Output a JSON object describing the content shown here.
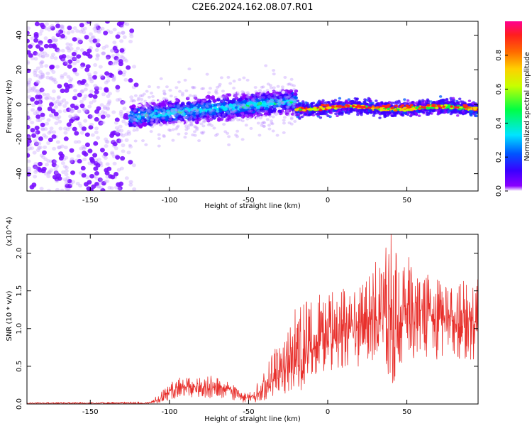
{
  "title": "C2E6.2024.162.08.07.R01",
  "colors": {
    "snr_line": "#e8302c",
    "frame": "#000000",
    "colormap": [
      "#ffffff",
      "#8a00ff",
      "#3a00ff",
      "#0055ff",
      "#00e5ff",
      "#00ff44",
      "#c8ff00",
      "#ffd000",
      "#ff6a00",
      "#ff1e1e",
      "#ff0090"
    ]
  },
  "chart_data": [
    {
      "type": "heatmap",
      "name": "spectrogram",
      "title": "C2E6.2024.162.08.07.R01",
      "xlabel": "Height of straight line (km)",
      "ylabel": "Frequency (Hz)",
      "xlim": [
        -190,
        95
      ],
      "ylim": [
        -50,
        48
      ],
      "xticks": [
        -150,
        -100,
        -50,
        0,
        50
      ],
      "xtick_labels": [
        "-150",
        "-100",
        "-50",
        "0",
        "50"
      ],
      "yticks": [
        -40,
        -20,
        0,
        20,
        40
      ],
      "ytick_labels": [
        "-40",
        "-20",
        "0",
        "20",
        "40"
      ],
      "colorbar": {
        "label": "Normalized spectral amplitude",
        "range": [
          0,
          1
        ],
        "ticks": [
          0.0,
          0.2,
          0.4,
          0.6,
          0.8
        ],
        "tick_labels": [
          "0.0",
          "0.2",
          "0.4",
          "0.6",
          "0.8"
        ]
      },
      "regions": [
        {
          "x_range": [
            -190,
            -122
          ],
          "freq_range": [
            -50,
            48
          ],
          "amplitude_range": [
            0.02,
            0.15
          ],
          "description": "diffuse noise"
        },
        {
          "x_range": [
            -125,
            -20
          ],
          "freq_center": [
            -7,
            2
          ],
          "freq_spread": 9,
          "amplitude_range": [
            0.1,
            0.45
          ]
        },
        {
          "x_range": [
            -20,
            95
          ],
          "freq_center": [
            -2,
            0
          ],
          "freq_spread": 2,
          "amplitude_range": [
            0.3,
            1.0
          ]
        }
      ]
    },
    {
      "type": "line",
      "name": "snr",
      "xlabel": "Height of straight line (km)",
      "ylabel": "SNR (10 * v/v)",
      "y_multiplier": "(x10^4)",
      "xlim": [
        -190,
        95
      ],
      "ylim": [
        0,
        2.25
      ],
      "xticks": [
        -150,
        -100,
        -50,
        0,
        50
      ],
      "xtick_labels": [
        "-150",
        "-100",
        "-50",
        "0",
        "50"
      ],
      "yticks": [
        0.0,
        0.5,
        1.0,
        1.5,
        2.0
      ],
      "ytick_labels": [
        "0.0",
        "0.5",
        "1.0",
        "1.5",
        "2.0"
      ],
      "envelope": {
        "x": [
          -190,
          -115,
          -110,
          -105,
          -100,
          -95,
          -90,
          -85,
          -80,
          -75,
          -70,
          -65,
          -60,
          -55,
          -50,
          -45,
          -40,
          -35,
          -30,
          -25,
          -20,
          -15,
          -10,
          -5,
          0,
          5,
          10,
          15,
          20,
          25,
          30,
          35,
          40,
          45,
          50,
          55,
          60,
          65,
          70,
          75,
          80,
          85,
          90,
          95
        ],
        "mean": [
          0.01,
          0.01,
          0.03,
          0.08,
          0.16,
          0.22,
          0.23,
          0.22,
          0.21,
          0.22,
          0.21,
          0.22,
          0.18,
          0.1,
          0.08,
          0.12,
          0.2,
          0.3,
          0.38,
          0.42,
          0.5,
          0.62,
          0.72,
          0.8,
          0.82,
          0.9,
          0.92,
          0.98,
          1.05,
          1.12,
          1.18,
          1.2,
          1.25,
          1.28,
          1.3,
          1.25,
          1.22,
          1.2,
          1.18,
          1.15,
          1.15,
          1.12,
          1.1,
          1.1
        ],
        "peak": [
          0.02,
          0.03,
          0.07,
          0.18,
          0.28,
          0.35,
          0.38,
          0.38,
          0.35,
          0.38,
          0.34,
          0.36,
          0.3,
          0.2,
          0.15,
          0.28,
          0.45,
          0.68,
          0.85,
          1.05,
          1.35,
          1.5,
          1.45,
          1.5,
          1.5,
          1.48,
          1.55,
          1.7,
          1.6,
          1.75,
          1.9,
          2.0,
          2.3,
          1.95,
          2.0,
          1.85,
          1.6,
          1.8,
          1.7,
          1.55,
          1.65,
          1.7,
          1.6,
          1.7
        ],
        "trough": [
          0.0,
          0.0,
          0.0,
          0.02,
          0.05,
          0.08,
          0.1,
          0.08,
          0.08,
          0.08,
          0.08,
          0.08,
          0.05,
          0.02,
          0.02,
          0.02,
          0.05,
          0.08,
          0.12,
          0.15,
          0.15,
          0.2,
          0.3,
          0.35,
          0.4,
          0.45,
          0.45,
          0.5,
          0.5,
          0.55,
          0.6,
          0.55,
          0.2,
          0.45,
          0.65,
          0.6,
          0.7,
          0.55,
          0.6,
          0.65,
          0.55,
          0.6,
          0.5,
          0.55
        ]
      }
    }
  ]
}
